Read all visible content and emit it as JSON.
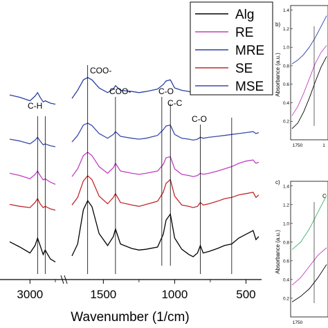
{
  "chart_data": [
    {
      "type": "line",
      "xlabel": "Wavenumber (1/cm)",
      "ylabel": "",
      "x_ticks": [
        "3000",
        "1500",
        "1000",
        "500"
      ],
      "axis_break": true,
      "grid": false,
      "legend_position": "top-right",
      "annotations": [
        "C-H",
        "COO-",
        "COO-",
        "C-O",
        "C-C",
        "C-O"
      ],
      "series": [
        {
          "name": "Alg",
          "color": "#000000",
          "x": [
            3200,
            3100,
            3000,
            2950,
            2925,
            2900,
            2870,
            2850,
            2800,
            2750,
            1720,
            1680,
            1640,
            1610,
            1580,
            1530,
            1470,
            1430,
            1415,
            1380,
            1300,
            1250,
            1200,
            1120,
            1080,
            1060,
            1030,
            1000,
            950,
            900,
            870,
            840,
            820,
            800,
            760,
            700,
            650,
            600,
            550,
            500,
            450,
            430,
            410
          ],
          "y": [
            0.45,
            0.38,
            0.3,
            0.4,
            0.5,
            0.4,
            0.28,
            0.34,
            0.22,
            0.18,
            0.26,
            0.42,
            0.88,
            1.0,
            0.92,
            0.56,
            0.4,
            0.52,
            0.62,
            0.42,
            0.36,
            0.34,
            0.35,
            0.38,
            0.55,
            0.74,
            0.82,
            0.5,
            0.35,
            0.28,
            0.25,
            0.3,
            0.4,
            0.3,
            0.32,
            0.36,
            0.4,
            0.42,
            0.5,
            0.55,
            0.6,
            0.48,
            0.52
          ]
        },
        {
          "name": "SE",
          "color": "#c0282a",
          "x": [
            3200,
            3100,
            3000,
            2950,
            2925,
            2900,
            2870,
            2850,
            2800,
            2750,
            1720,
            1680,
            1640,
            1610,
            1580,
            1530,
            1470,
            1430,
            1415,
            1380,
            1300,
            1250,
            1200,
            1120,
            1080,
            1060,
            1030,
            1000,
            950,
            900,
            870,
            840,
            820,
            800,
            760,
            700,
            650,
            600,
            550,
            500,
            450,
            430,
            410
          ],
          "y": [
            0.55,
            0.52,
            0.5,
            0.58,
            0.64,
            0.56,
            0.5,
            0.52,
            0.48,
            0.46,
            0.54,
            0.66,
            0.92,
            1.0,
            0.94,
            0.68,
            0.56,
            0.66,
            0.72,
            0.58,
            0.54,
            0.52,
            0.55,
            0.6,
            0.74,
            0.88,
            0.94,
            0.68,
            0.54,
            0.52,
            0.5,
            0.52,
            0.58,
            0.54,
            0.56,
            0.6,
            0.64,
            0.66,
            0.7,
            0.72,
            0.74,
            0.66,
            0.7
          ]
        },
        {
          "name": "RE",
          "color": "#c040c0",
          "x": [
            3200,
            3100,
            3000,
            2950,
            2925,
            2900,
            2870,
            2850,
            2800,
            2750,
            1720,
            1680,
            1640,
            1610,
            1580,
            1530,
            1470,
            1430,
            1415,
            1380,
            1300,
            1250,
            1200,
            1120,
            1080,
            1060,
            1030,
            1000,
            950,
            900,
            870,
            840,
            820,
            800,
            760,
            700,
            650,
            600,
            550,
            500,
            450,
            430,
            410
          ],
          "y": [
            0.62,
            0.58,
            0.52,
            0.6,
            0.66,
            0.58,
            0.5,
            0.52,
            0.46,
            0.42,
            0.56,
            0.7,
            0.94,
            1.0,
            0.94,
            0.74,
            0.62,
            0.72,
            0.8,
            0.66,
            0.62,
            0.6,
            0.62,
            0.66,
            0.78,
            0.9,
            0.92,
            0.7,
            0.6,
            0.58,
            0.56,
            0.58,
            0.62,
            0.6,
            0.62,
            0.66,
            0.7,
            0.74,
            0.8,
            0.84,
            0.86,
            0.8,
            0.82
          ]
        },
        {
          "name": "MSE",
          "color": "#3a4aa8",
          "x": [
            3200,
            3100,
            3000,
            2950,
            2925,
            2900,
            2870,
            2850,
            2800,
            2750,
            1720,
            1680,
            1640,
            1610,
            1580,
            1530,
            1470,
            1430,
            1415,
            1380,
            1300,
            1250,
            1200,
            1120,
            1080,
            1060,
            1030,
            1000,
            950,
            900,
            870,
            840,
            820,
            800,
            760,
            700,
            650,
            600,
            550,
            500,
            450,
            430,
            410
          ],
          "y": [
            0.66,
            0.62,
            0.56,
            0.64,
            0.7,
            0.62,
            0.54,
            0.56,
            0.52,
            0.5,
            0.6,
            0.74,
            0.96,
            1.0,
            0.95,
            0.78,
            0.68,
            0.76,
            0.82,
            0.72,
            0.68,
            0.66,
            0.68,
            0.74,
            0.86,
            0.94,
            0.96,
            0.76,
            0.68,
            0.66,
            0.64,
            0.66,
            0.7,
            0.68,
            0.7,
            0.72,
            0.74,
            0.76,
            0.78,
            0.8,
            0.82,
            0.78,
            0.8
          ]
        },
        {
          "name": "MRE",
          "color": "#2840a0",
          "x": [
            3200,
            3100,
            3000,
            2950,
            2925,
            2900,
            2870,
            2850,
            2800,
            2750,
            1720,
            1680,
            1640,
            1610,
            1580,
            1530,
            1470,
            1430,
            1415,
            1380,
            1300,
            1250,
            1200,
            1120,
            1080,
            1060,
            1030,
            1000,
            950,
            900,
            870,
            840,
            820,
            800,
            760,
            700,
            650,
            600,
            550,
            500,
            450,
            430,
            410
          ],
          "y": [
            0.7,
            0.66,
            0.6,
            0.68,
            0.74,
            0.66,
            0.58,
            0.6,
            0.56,
            0.54,
            0.64,
            0.78,
            0.96,
            1.0,
            0.96,
            0.82,
            0.74,
            0.8,
            0.86,
            0.78,
            0.76,
            0.74,
            0.76,
            0.8,
            0.88,
            0.94,
            0.96,
            0.82,
            0.78,
            0.76,
            0.74,
            0.76,
            0.78,
            0.78,
            0.8,
            0.82,
            0.84,
            0.86,
            0.86,
            0.86,
            0.86,
            0.82,
            0.84
          ]
        }
      ]
    },
    {
      "type": "line",
      "panel_label": "b)",
      "ylabel": "Absorbance (a.u.)",
      "y_ticks": [
        "0.2",
        "0.4",
        "0.6",
        "0.8",
        "1.0",
        "1.2",
        "1.4"
      ],
      "x_ticks": [
        "1750",
        "1"
      ],
      "series": [
        {
          "color": "#000000",
          "y": [
            0.12,
            0.18,
            0.3,
            0.45,
            0.62,
            0.78,
            0.9
          ]
        },
        {
          "color": "#c040c0",
          "y": [
            0.26,
            0.36,
            0.5,
            0.66,
            0.82,
            0.94,
            1.02
          ]
        },
        {
          "color": "#2840a0",
          "y": [
            0.82,
            0.86,
            0.92,
            1.0,
            1.1,
            1.22,
            1.34
          ]
        }
      ]
    },
    {
      "type": "line",
      "panel_label": "c)",
      "ylabel": "Absorbance (a.u.)",
      "y_ticks": [
        "0.2",
        "0.4",
        "0.6",
        "0.8",
        "1.0",
        "1.2",
        "1.4"
      ],
      "x_ticks": [
        "1750"
      ],
      "annotations": [
        "C"
      ],
      "series": [
        {
          "color": "#000000",
          "y": [
            0.16,
            0.22,
            0.3,
            0.42,
            0.56
          ]
        },
        {
          "color": "#c040c0",
          "y": [
            0.34,
            0.42,
            0.54,
            0.66,
            0.74
          ]
        },
        {
          "color": "#40b070",
          "y": [
            0.72,
            0.8,
            0.94,
            1.12,
            1.3
          ]
        }
      ]
    }
  ]
}
